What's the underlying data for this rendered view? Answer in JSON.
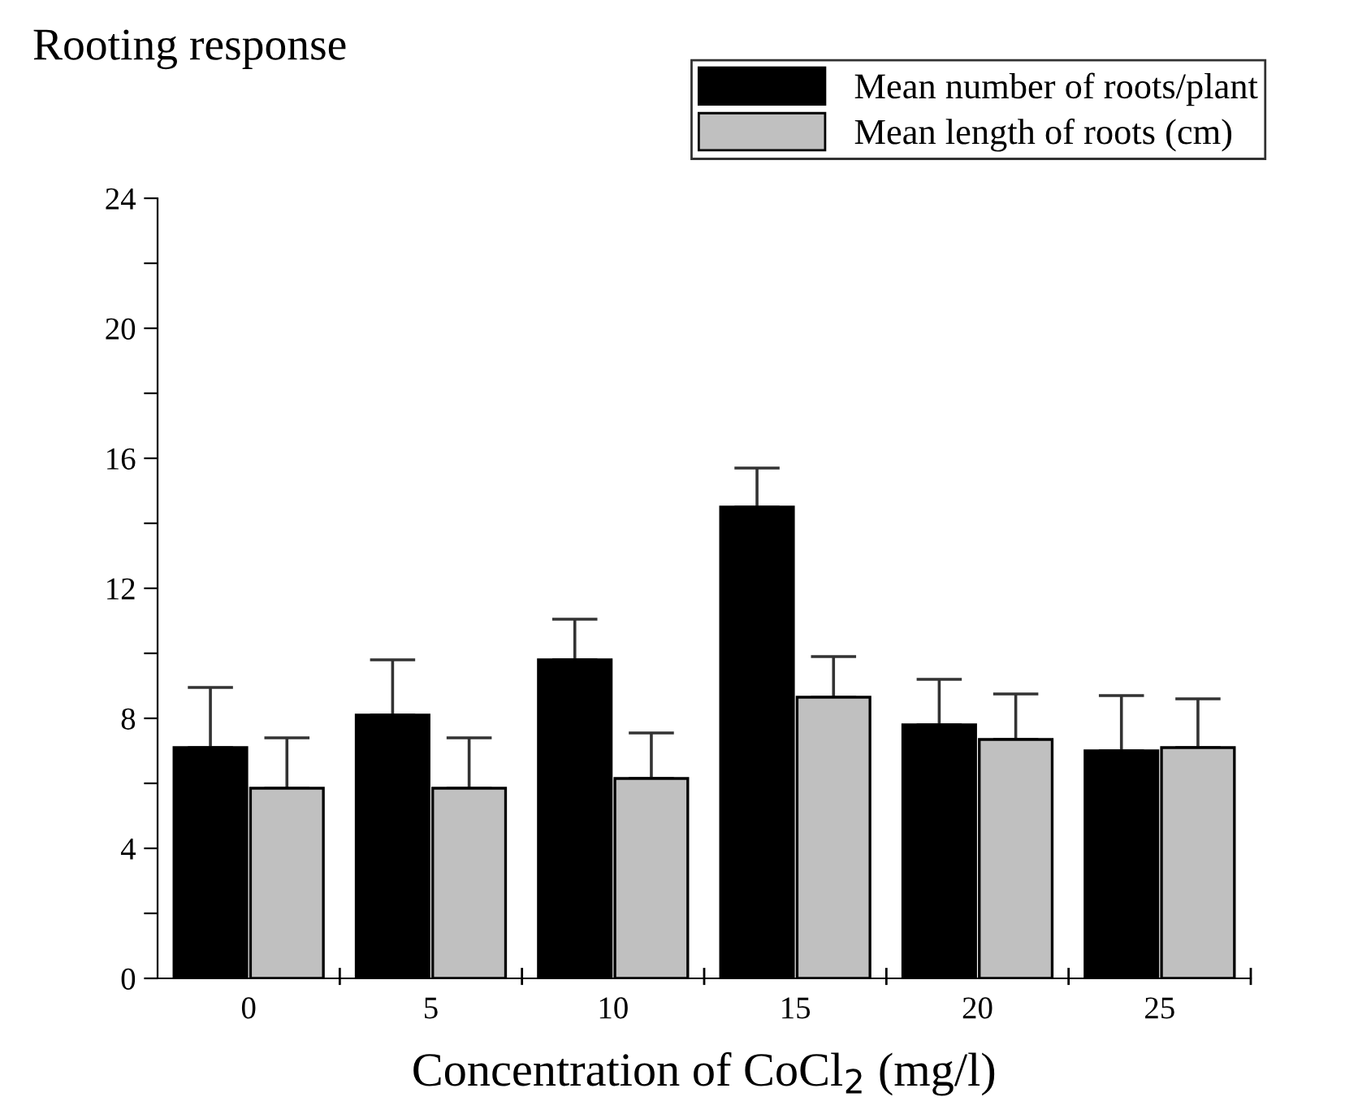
{
  "chart_data": {
    "type": "bar",
    "title": "Rooting response",
    "xlabel": "Concentration of CoCl$_{2}$ (mg/l)",
    "categories": [
      "0",
      "5",
      "10",
      "15",
      "20",
      "25"
    ],
    "series": [
      {
        "name": "Mean number of roots/plant",
        "color": "#000000",
        "values": [
          7.1,
          8.1,
          9.8,
          14.5,
          7.8,
          7.0
        ],
        "errors": [
          [
            7.1,
            8.95
          ],
          [
            8.1,
            9.8
          ],
          [
            9.8,
            11.05
          ],
          [
            14.5,
            15.7
          ],
          [
            7.8,
            9.2
          ],
          [
            7.0,
            8.7
          ]
        ]
      },
      {
        "name": "Mean length of roots (cm)",
        "color": "#c0c0c0",
        "values": [
          5.85,
          5.85,
          6.15,
          8.65,
          7.35,
          7.1
        ],
        "errors": [
          [
            5.85,
            7.4
          ],
          [
            5.85,
            7.4
          ],
          [
            6.15,
            7.55
          ],
          [
            8.65,
            9.9
          ],
          [
            7.35,
            8.75
          ],
          [
            7.1,
            8.6
          ]
        ]
      }
    ],
    "ylim": [
      0,
      24
    ],
    "yticks": [
      0,
      {
        "value": 2,
        "label": null
      },
      4,
      {
        "value": 6,
        "label": null
      },
      8,
      {
        "value": 10,
        "label": null
      },
      12,
      {
        "value": 14,
        "label": null
      },
      16,
      {
        "value": 18,
        "label": null
      },
      20,
      {
        "value": 22,
        "label": null
      },
      24
    ],
    "grid": false,
    "legend": "top right"
  }
}
